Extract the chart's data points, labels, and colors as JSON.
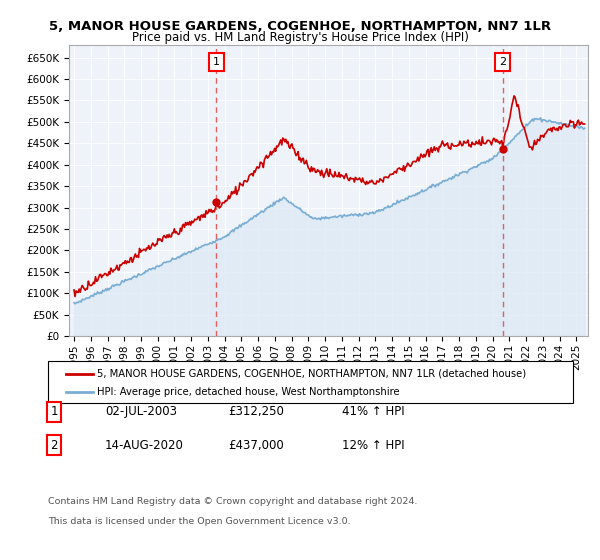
{
  "title1": "5, MANOR HOUSE GARDENS, COGENHOE, NORTHAMPTON, NN7 1LR",
  "title2": "Price paid vs. HM Land Registry's House Price Index (HPI)",
  "legend_line1": "5, MANOR HOUSE GARDENS, COGENHOE, NORTHAMPTON, NN7 1LR (detached house)",
  "legend_line2": "HPI: Average price, detached house, West Northamptonshire",
  "annotation1_date": "02-JUL-2003",
  "annotation1_price": "£312,250",
  "annotation1_hpi": "41% ↑ HPI",
  "annotation2_date": "14-AUG-2020",
  "annotation2_price": "£437,000",
  "annotation2_hpi": "12% ↑ HPI",
  "footer1": "Contains HM Land Registry data © Crown copyright and database right 2024.",
  "footer2": "This data is licensed under the Open Government Licence v3.0.",
  "sale1_year": 2003.5,
  "sale1_value": 312250,
  "sale2_year": 2020.6,
  "sale2_value": 437000,
  "red_color": "#cc0000",
  "blue_color": "#7aadd4",
  "blue_fill": "#dce9f5",
  "dashed_red": "#e06060",
  "ylim_min": 0,
  "ylim_max": 680000,
  "ytick_step": 50000,
  "bg_color": "#eef3f9"
}
